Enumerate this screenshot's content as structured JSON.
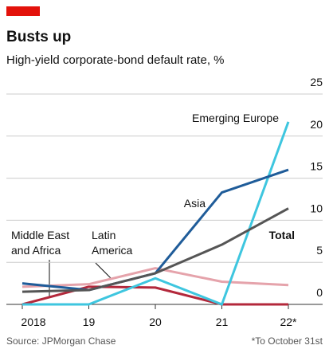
{
  "chart_data": {
    "type": "line",
    "title": "Busts up",
    "subtitle": "High-yield corporate-bond default rate, %",
    "source": "Source: JPMorgan Chase",
    "note": "*To October 31st",
    "categories": [
      "2018",
      "19",
      "20",
      "21",
      "22*"
    ],
    "ylim": [
      0,
      25
    ],
    "yticks": [
      0,
      5,
      10,
      15,
      20,
      25
    ],
    "grid": true,
    "series": [
      {
        "name": "Middle East and Africa",
        "color": "#b3283b",
        "values": [
          0,
          2.1,
          2.0,
          0,
          0
        ]
      },
      {
        "name": "Latin America",
        "color": "#e5a3ab",
        "values": [
          2.1,
          2.4,
          4.3,
          2.7,
          2.3
        ]
      },
      {
        "name": "Emerging Europe",
        "color": "#3ec6df",
        "values": [
          0,
          0,
          3.1,
          0,
          21.7
        ]
      },
      {
        "name": "Asia",
        "color": "#1f5c99",
        "values": [
          2.5,
          1.7,
          3.7,
          13.3,
          16
        ]
      },
      {
        "name": "Total",
        "color": "#555555",
        "values": [
          1.5,
          1.7,
          3.7,
          7.1,
          11.4
        ]
      }
    ]
  }
}
